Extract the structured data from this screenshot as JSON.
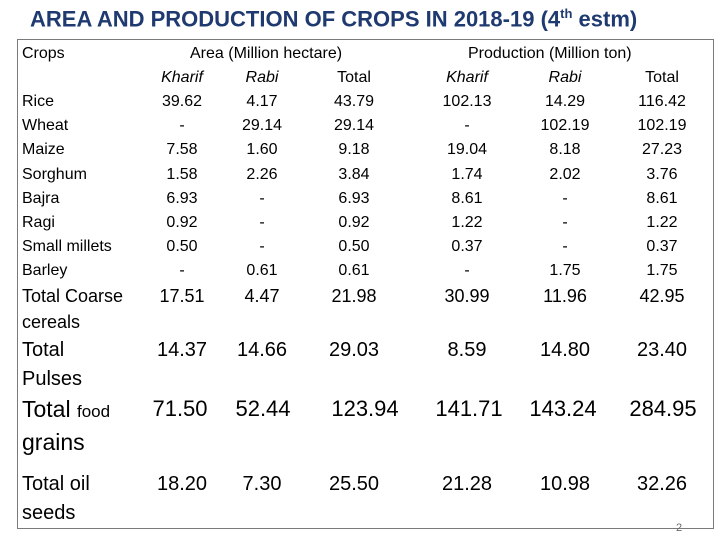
{
  "title_main": "AREA AND PRODUCTION OF CROPS IN 2018-19 (4",
  "title_sup": "th",
  "title_end": " estm)",
  "headers": {
    "crops": "Crops",
    "area": "Area (Million hectare)",
    "production": "Production (Million ton)",
    "kharif": "Kharif",
    "rabi": "Rabi",
    "total": "Total"
  },
  "rows": [
    {
      "crop": "Rice",
      "values": [
        "39.62",
        "4.17",
        "43.79",
        "102.13",
        "14.29",
        "116.42"
      ]
    },
    {
      "crop": "Wheat",
      "values": [
        "-",
        "29.14",
        "29.14",
        "-",
        "102.19",
        "102.19"
      ]
    },
    {
      "crop": "Maize",
      "values": [
        "7.58",
        "1.60",
        "9.18",
        "19.04",
        "8.18",
        "27.23"
      ]
    },
    {
      "crop": "Sorghum",
      "values": [
        "1.58",
        "2.26",
        "3.84",
        "1.74",
        "2.02",
        "3.76"
      ]
    },
    {
      "crop": "Bajra",
      "values": [
        "6.93",
        "-",
        "6.93",
        "8.61",
        "-",
        "8.61"
      ]
    },
    {
      "crop": "Ragi",
      "values": [
        "0.92",
        "-",
        "0.92",
        "1.22",
        "-",
        "1.22"
      ]
    },
    {
      "crop": "Small millets",
      "values": [
        "0.50",
        "-",
        "0.50",
        "0.37",
        "-",
        "0.37"
      ]
    },
    {
      "crop": "Barley",
      "values": [
        "-",
        "0.61",
        "0.61",
        "-",
        "1.75",
        "1.75"
      ]
    }
  ],
  "totals": {
    "coarse": {
      "label_1": "Total Coarse",
      "label_2": "cereals",
      "values": [
        "17.51",
        "4.47",
        "21.98",
        "30.99",
        "11.96",
        "42.95"
      ]
    },
    "pulses": {
      "label_1": "Total",
      "label_2": "Pulses",
      "values": [
        "14.37",
        "14.66",
        "29.03",
        "8.59",
        "14.80",
        "23.40"
      ]
    },
    "food": {
      "label_a": "Total",
      "label_b": "food",
      "label_2": "grains",
      "values": [
        "71.50",
        "52.44",
        "123.94",
        "141.71",
        "143.24",
        "284.95"
      ]
    },
    "oil": {
      "label_1": "Total oil",
      "label_2": "seeds",
      "values": [
        "18.20",
        "7.30",
        "25.50",
        "21.28",
        "10.98",
        "32.26"
      ]
    }
  },
  "page_number": "2"
}
